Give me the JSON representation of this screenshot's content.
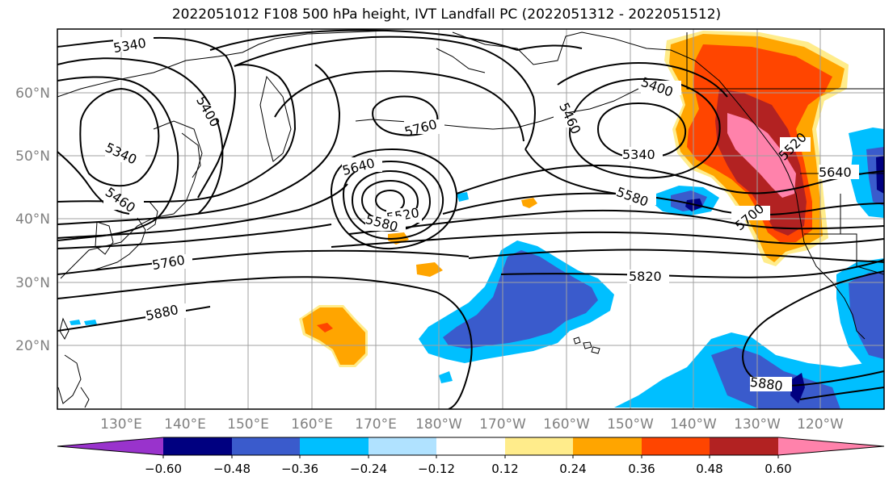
{
  "title": "2022051012 F108 500 hPa height, IVT Landfall PC (2022051312 - 2022051512)",
  "lat_ticks": [
    "20°N",
    "30°N",
    "40°N",
    "50°N",
    "60°N"
  ],
  "lon_ticks": [
    "130°E",
    "140°E",
    "150°E",
    "160°E",
    "170°E",
    "180°W",
    "170°W",
    "160°W",
    "150°W",
    "140°W",
    "130°W",
    "120°W"
  ],
  "contour_labels": [
    "5340",
    "5400",
    "5340",
    "5460",
    "5760",
    "5640",
    "5520",
    "5580",
    "5760",
    "5880",
    "5400",
    "5460",
    "5340",
    "5580",
    "5640",
    "5700",
    "5520",
    "5820",
    "5880"
  ],
  "colorbar": {
    "tick_labels": [
      "−0.60",
      "−0.48",
      "−0.36",
      "−0.24",
      "−0.12",
      "0.12",
      "0.24",
      "0.36",
      "0.48",
      "0.60"
    ],
    "colors": [
      "#9933cc",
      "#000080",
      "#3a5bcc",
      "#00bfff",
      "#b0e2ff",
      "#ffffff",
      "#ffec8b",
      "#ffa500",
      "#ff4500",
      "#b22222",
      "#ff82ab"
    ]
  },
  "colors": {
    "contour": "#000000",
    "grid": "#a0a0a0",
    "tick_label": "#808080"
  }
}
